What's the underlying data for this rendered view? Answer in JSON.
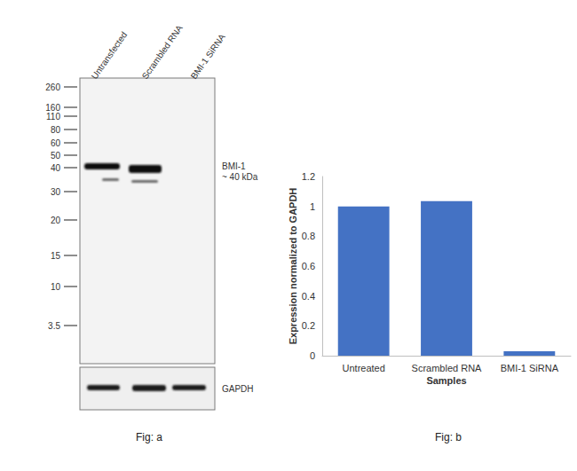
{
  "chart_data": {
    "type": "bar",
    "categories": [
      "Untreated",
      "Scrambled RNA",
      "BMI-1 SiRNA"
    ],
    "values": [
      1.0,
      1.035,
      0.03
    ],
    "color": "#4472c4",
    "x_label": "Samples",
    "y_label": "Expression normalized to GAPDH",
    "ylim": [
      0,
      1.2
    ],
    "yticks": [
      0,
      0.2,
      0.4,
      0.6,
      0.8,
      1,
      1.2
    ],
    "grid": false
  },
  "blot": {
    "lanes": [
      "Untransfected",
      "Scrambled RNA",
      "BMI-1 SiRNA"
    ],
    "markers": [
      260,
      160,
      110,
      80,
      60,
      50,
      40,
      30,
      20,
      15,
      10,
      3.5
    ],
    "target_label": "BMI-1",
    "target_size": "~ 40 kDa",
    "loading_control": "GAPDH"
  },
  "figure_labels": [
    "Fig: a",
    "Fig: b"
  ]
}
